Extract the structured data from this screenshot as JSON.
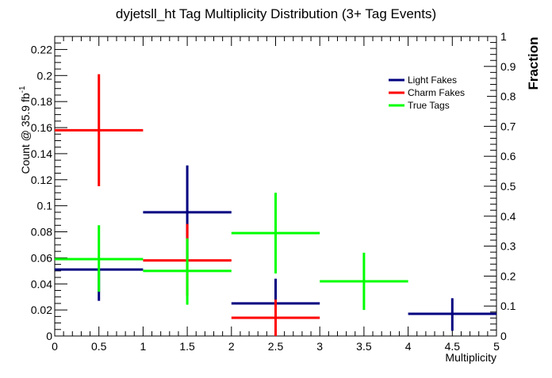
{
  "colors": {
    "light_fakes": "#000080",
    "charm_fakes": "#ff0000",
    "true_tags": "#00ff00"
  },
  "chart_data": {
    "type": "scatter",
    "title": "dyjetsll_ht Tag Multiplicity Distribution (3+ Tag Events)",
    "xlabel": "Multiplicity",
    "ylabel_main": "Count @ 35.9 fb",
    "ylabel_sup": "-1",
    "y2label": "Fraction",
    "xlim": [
      0,
      5
    ],
    "ylim": [
      0,
      0.23
    ],
    "y2lim": [
      0,
      1
    ],
    "x_ticks": [
      "0",
      "0.5",
      "1",
      "1.5",
      "2",
      "2.5",
      "3",
      "3.5",
      "4",
      "4.5",
      "5"
    ],
    "y_ticks": [
      "0",
      "0.02",
      "0.04",
      "0.06",
      "0.08",
      "0.1",
      "0.12",
      "0.14",
      "0.16",
      "0.18",
      "0.2",
      "0.22"
    ],
    "y2_ticks": [
      "0",
      "0.1",
      "0.2",
      "0.3",
      "0.4",
      "0.5",
      "0.6",
      "0.7",
      "0.8",
      "0.9",
      "1"
    ],
    "legend_position": "top-right",
    "series": [
      {
        "name": "Light Fakes",
        "color": "#000080",
        "points": [
          {
            "x": 0.5,
            "xlo": 0,
            "xhi": 1,
            "y": 0.051,
            "ylo": 0.027,
            "yhi": 0.051
          },
          {
            "x": 1.5,
            "xlo": 1,
            "xhi": 2,
            "y": 0.095,
            "ylo": 0.059,
            "yhi": 0.131
          },
          {
            "x": 2.5,
            "xlo": 2,
            "xhi": 3,
            "y": 0.025,
            "ylo": 0.006,
            "yhi": 0.044
          },
          {
            "x": 4.5,
            "xlo": 4,
            "xhi": 5,
            "y": 0.017,
            "ylo": 0.004,
            "yhi": 0.029
          }
        ]
      },
      {
        "name": "Charm Fakes",
        "color": "#ff0000",
        "points": [
          {
            "x": 0.5,
            "xlo": 0,
            "xhi": 1,
            "y": 0.158,
            "ylo": 0.115,
            "yhi": 0.201
          },
          {
            "x": 1.5,
            "xlo": 1,
            "xhi": 2,
            "y": 0.058,
            "ylo": 0.031,
            "yhi": 0.086
          },
          {
            "x": 2.5,
            "xlo": 2,
            "xhi": 3,
            "y": 0.014,
            "ylo": 0.0,
            "yhi": 0.028
          }
        ]
      },
      {
        "name": "True Tags",
        "color": "#00ff00",
        "points": [
          {
            "x": 0.5,
            "xlo": 0,
            "xhi": 1,
            "y": 0.059,
            "ylo": 0.034,
            "yhi": 0.085
          },
          {
            "x": 1.5,
            "xlo": 1,
            "xhi": 2,
            "y": 0.05,
            "ylo": 0.024,
            "yhi": 0.075
          },
          {
            "x": 2.5,
            "xlo": 2,
            "xhi": 3,
            "y": 0.079,
            "ylo": 0.048,
            "yhi": 0.11
          },
          {
            "x": 3.5,
            "xlo": 3,
            "xhi": 4,
            "y": 0.042,
            "ylo": 0.02,
            "yhi": 0.064
          }
        ]
      }
    ]
  }
}
